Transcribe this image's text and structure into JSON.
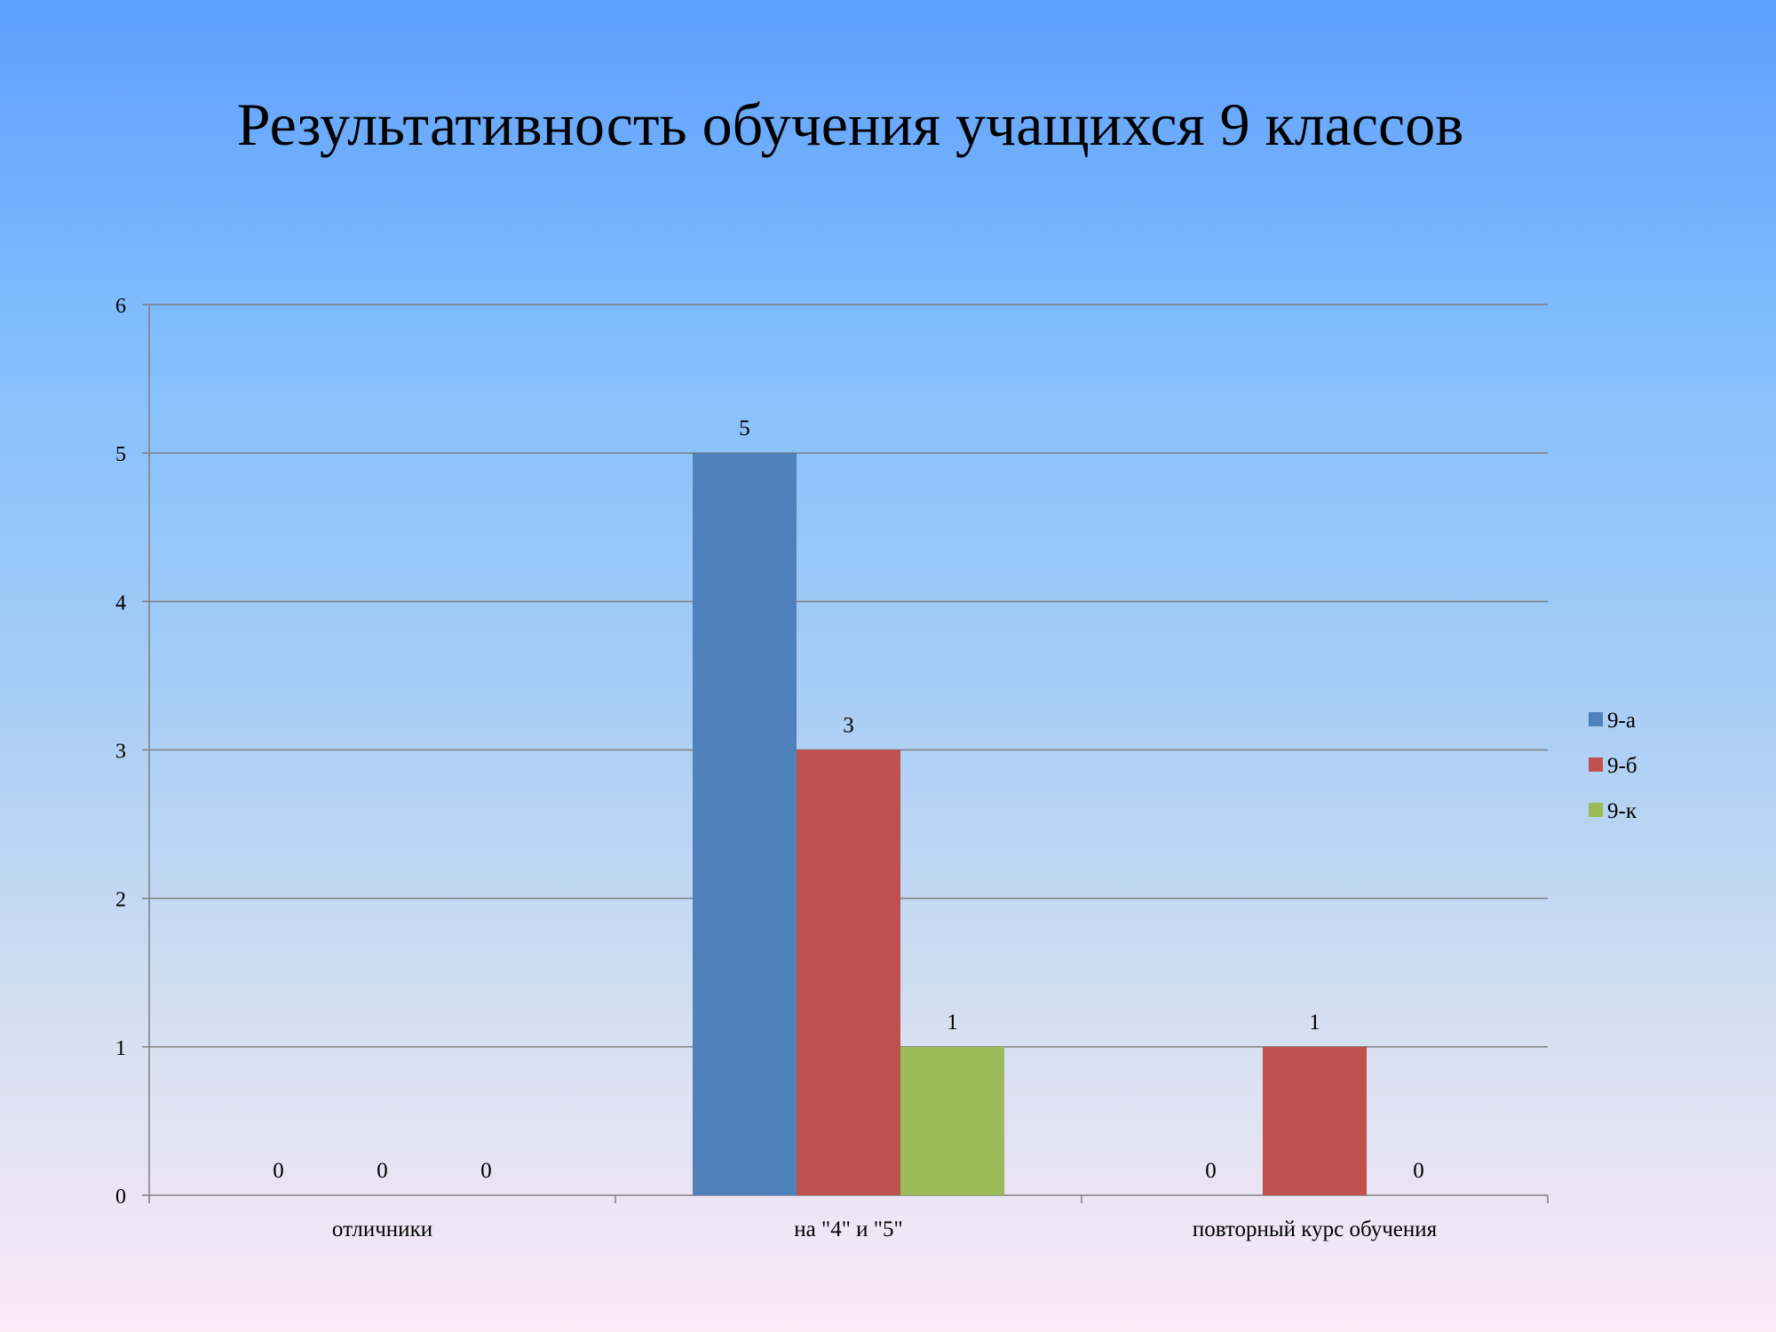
{
  "chart_data": {
    "type": "bar",
    "title": "Результативность обучения учащихся 9 классов",
    "categories": [
      "отличники",
      "на \"4\" и \"5\"",
      "повторный курс обучения"
    ],
    "series": [
      {
        "name": "9-а",
        "color": "#4f81bd",
        "values": [
          0,
          5,
          0
        ]
      },
      {
        "name": "9-б",
        "color": "#c0504d",
        "values": [
          0,
          3,
          1
        ]
      },
      {
        "name": "9-к",
        "color": "#9bbb59",
        "values": [
          0,
          1,
          0
        ]
      }
    ],
    "ylim": [
      0,
      6
    ],
    "yticks": [
      0,
      1,
      2,
      3,
      4,
      5,
      6
    ],
    "xlabel": "",
    "ylabel": "",
    "grid": true,
    "legend_position": "right",
    "data_labels": true
  }
}
